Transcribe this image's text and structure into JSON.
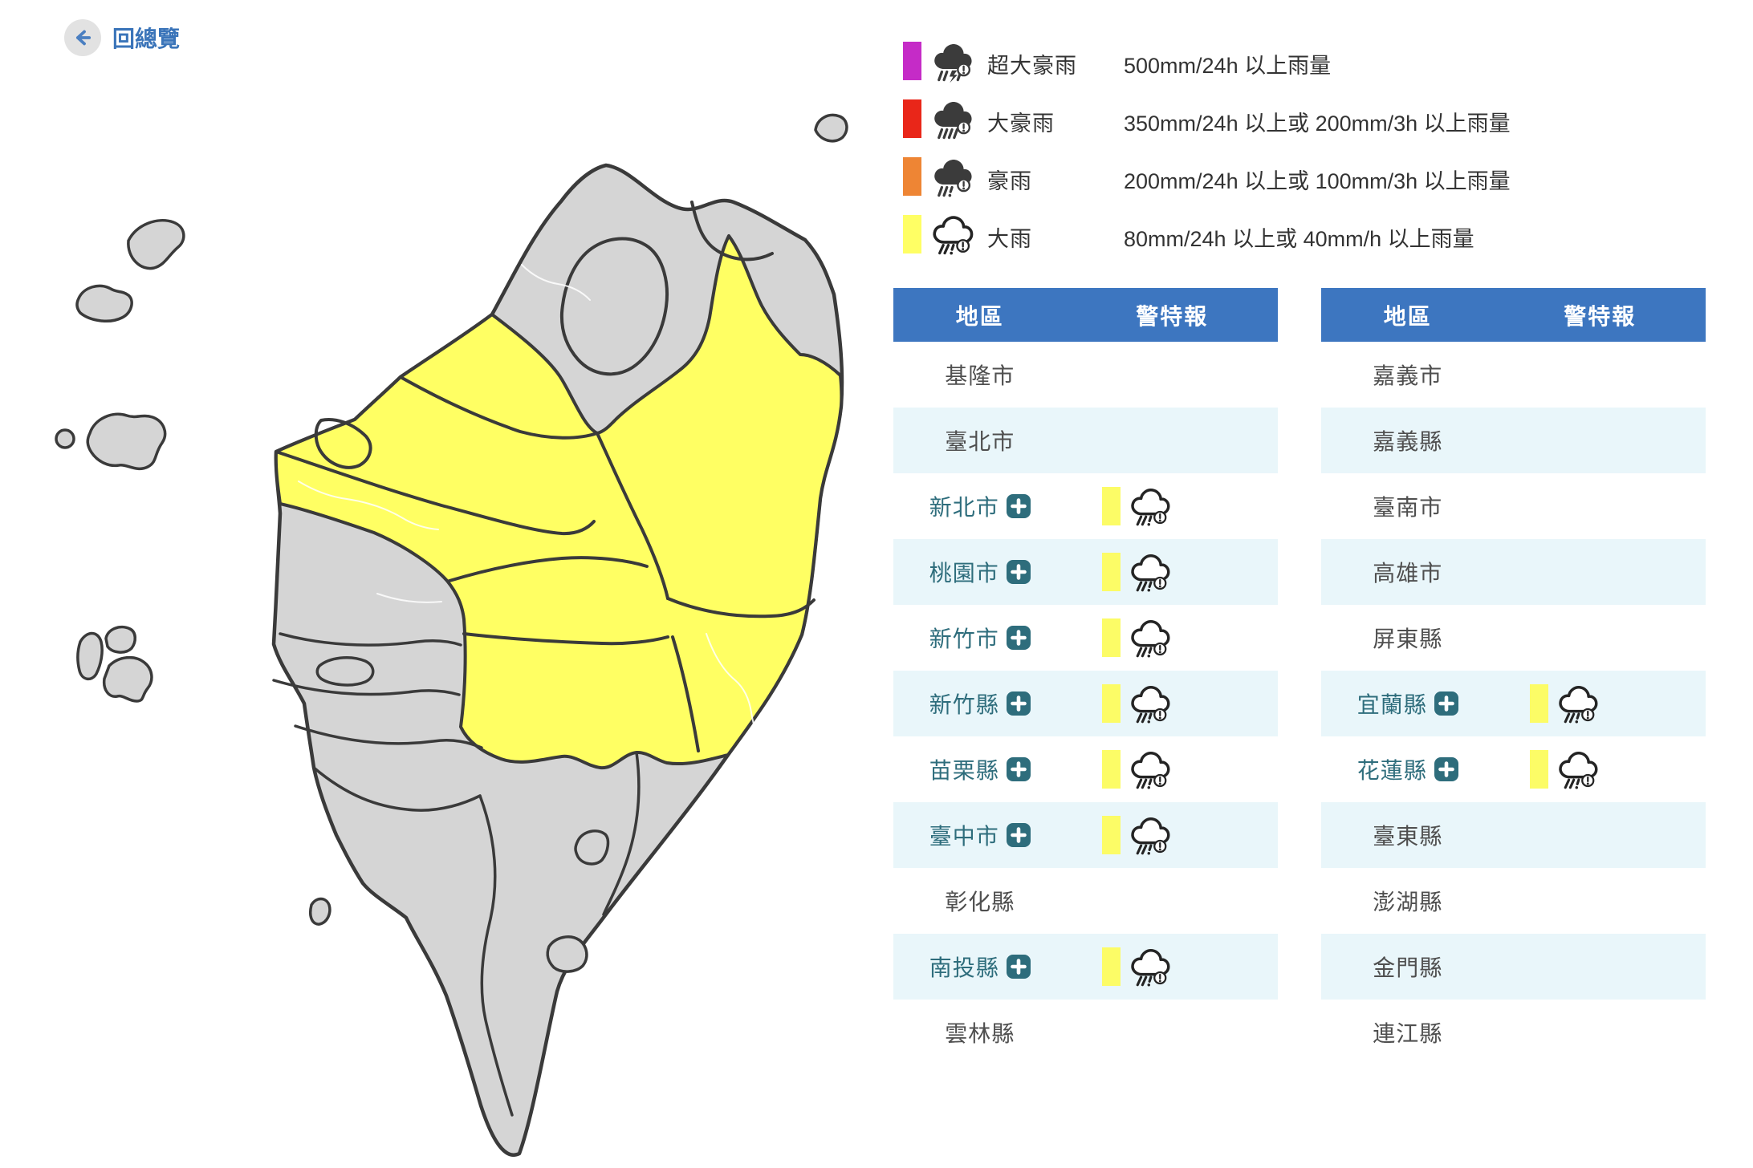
{
  "back": {
    "label": "回總覽"
  },
  "legend": {
    "items": [
      {
        "name": "超大豪雨",
        "desc": "500mm/24h 以上雨量",
        "color": "#c52bc7",
        "icon": "ic-cloud-storm"
      },
      {
        "name": "大豪雨",
        "desc": "350mm/24h 以上或 200mm/3h 以上雨量",
        "color": "#e92619",
        "icon": "ic-cloud-rain4"
      },
      {
        "name": "豪雨",
        "desc": "200mm/24h 以上或 100mm/3h 以上雨量",
        "color": "#ee8534",
        "icon": "ic-cloud-rain3"
      },
      {
        "name": "大雨",
        "desc": "80mm/24h 以上或 40mm/h 以上雨量",
        "color": "#ffff64",
        "icon": "ic-cloud-outline"
      }
    ]
  },
  "tables": [
    {
      "headers": [
        "地區",
        "警特報"
      ],
      "rows": [
        {
          "region": "基隆市",
          "expandable": false,
          "warning": false
        },
        {
          "region": "臺北市",
          "expandable": false,
          "warning": false
        },
        {
          "region": "新北市",
          "expandable": true,
          "warning": true
        },
        {
          "region": "桃園市",
          "expandable": true,
          "warning": true
        },
        {
          "region": "新竹市",
          "expandable": true,
          "warning": true
        },
        {
          "region": "新竹縣",
          "expandable": true,
          "warning": true
        },
        {
          "region": "苗栗縣",
          "expandable": true,
          "warning": true
        },
        {
          "region": "臺中市",
          "expandable": true,
          "warning": true
        },
        {
          "region": "彰化縣",
          "expandable": false,
          "warning": false
        },
        {
          "region": "南投縣",
          "expandable": true,
          "warning": true
        },
        {
          "region": "雲林縣",
          "expandable": false,
          "warning": false
        }
      ]
    },
    {
      "headers": [
        "地區",
        "警特報"
      ],
      "rows": [
        {
          "region": "嘉義市",
          "expandable": false,
          "warning": false
        },
        {
          "region": "嘉義縣",
          "expandable": false,
          "warning": false
        },
        {
          "region": "臺南市",
          "expandable": false,
          "warning": false
        },
        {
          "region": "高雄市",
          "expandable": false,
          "warning": false
        },
        {
          "region": "屏東縣",
          "expandable": false,
          "warning": false
        },
        {
          "region": "宜蘭縣",
          "expandable": true,
          "warning": true
        },
        {
          "region": "花蓮縣",
          "expandable": true,
          "warning": true
        },
        {
          "region": "臺東縣",
          "expandable": false,
          "warning": false
        },
        {
          "region": "澎湖縣",
          "expandable": false,
          "warning": false
        },
        {
          "region": "金門縣",
          "expandable": false,
          "warning": false
        },
        {
          "region": "連江縣",
          "expandable": false,
          "warning": false
        }
      ]
    }
  ],
  "map": {
    "warning_level_shown": "大雨",
    "warning_fill": "#ffff63",
    "normal_fill": "#d5d5d5",
    "border_color": "#3a3a3a"
  },
  "colors": {
    "table_header": "#3d76c0",
    "row_alt": "#e9f6fa",
    "region_link": "#2e6d7c",
    "warn_bar": "#fcfc66",
    "back_blue": "#3a74b9"
  }
}
